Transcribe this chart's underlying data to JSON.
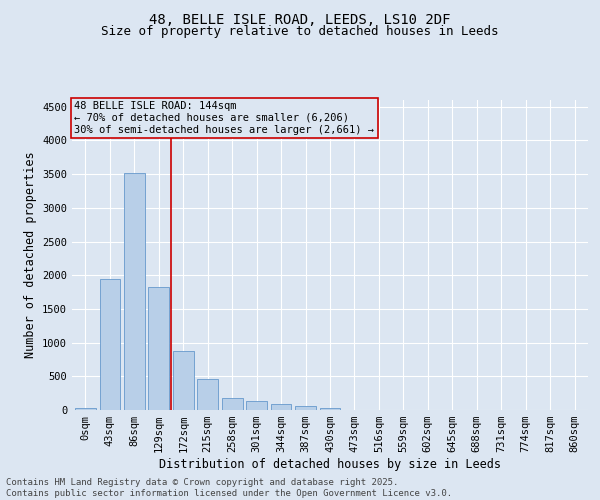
{
  "title_line1": "48, BELLE ISLE ROAD, LEEDS, LS10 2DF",
  "title_line2": "Size of property relative to detached houses in Leeds",
  "xlabel": "Distribution of detached houses by size in Leeds",
  "ylabel": "Number of detached properties",
  "bar_color": "#b8cfe8",
  "bar_edge_color": "#6699cc",
  "background_color": "#dce6f2",
  "grid_color": "#c8d4e4",
  "annotation_box_color": "#cc0000",
  "vline_color": "#cc0000",
  "categories": [
    "0sqm",
    "43sqm",
    "86sqm",
    "129sqm",
    "172sqm",
    "215sqm",
    "258sqm",
    "301sqm",
    "344sqm",
    "387sqm",
    "430sqm",
    "473sqm",
    "516sqm",
    "559sqm",
    "602sqm",
    "645sqm",
    "688sqm",
    "731sqm",
    "774sqm",
    "817sqm",
    "860sqm"
  ],
  "values": [
    30,
    1950,
    3520,
    1820,
    870,
    460,
    175,
    140,
    95,
    65,
    30,
    5,
    5,
    2,
    2,
    2,
    2,
    2,
    2,
    2,
    2
  ],
  "ylim": [
    0,
    4600
  ],
  "yticks": [
    0,
    500,
    1000,
    1500,
    2000,
    2500,
    3000,
    3500,
    4000,
    4500
  ],
  "vline_x": 3.5,
  "annotation_text_line1": "48 BELLE ISLE ROAD: 144sqm",
  "annotation_text_line2": "← 70% of detached houses are smaller (6,206)",
  "annotation_text_line3": "30% of semi-detached houses are larger (2,661) →",
  "footnote": "Contains HM Land Registry data © Crown copyright and database right 2025.\nContains public sector information licensed under the Open Government Licence v3.0.",
  "title_fontsize": 10,
  "subtitle_fontsize": 9,
  "axis_label_fontsize": 8.5,
  "tick_fontsize": 7.5,
  "annotation_fontsize": 7.5,
  "footnote_fontsize": 6.5
}
